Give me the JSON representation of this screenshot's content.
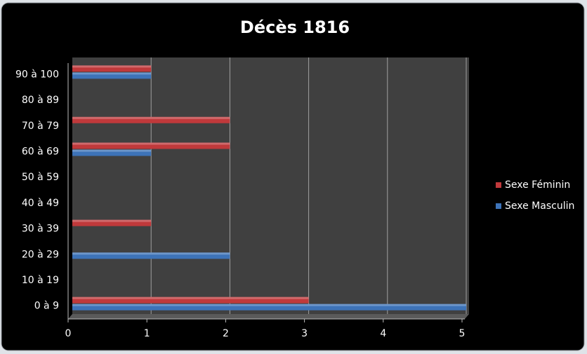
{
  "chart_data": {
    "type": "bar",
    "orientation": "horizontal",
    "title": "Décès 1816",
    "categories": [
      "0 à 9",
      "10 à 19",
      "20 à 29",
      "30 à 39",
      "40 à 49",
      "50 à 59",
      "60 à 69",
      "70 à 79",
      "80 à 89",
      "90 à 100"
    ],
    "series": [
      {
        "name": "Sexe Féminin",
        "color": "#c0393b",
        "values": [
          3,
          0,
          0,
          1,
          0,
          0,
          2,
          2,
          0,
          1
        ]
      },
      {
        "name": "Sexe Masculin",
        "color": "#3d73b8",
        "values": [
          5,
          0,
          2,
          0,
          0,
          0,
          1,
          0,
          0,
          1
        ]
      }
    ],
    "xlim": [
      0,
      5
    ],
    "xticks": [
      0,
      1,
      2,
      3,
      4,
      5
    ],
    "grid": true,
    "legend": "right"
  }
}
